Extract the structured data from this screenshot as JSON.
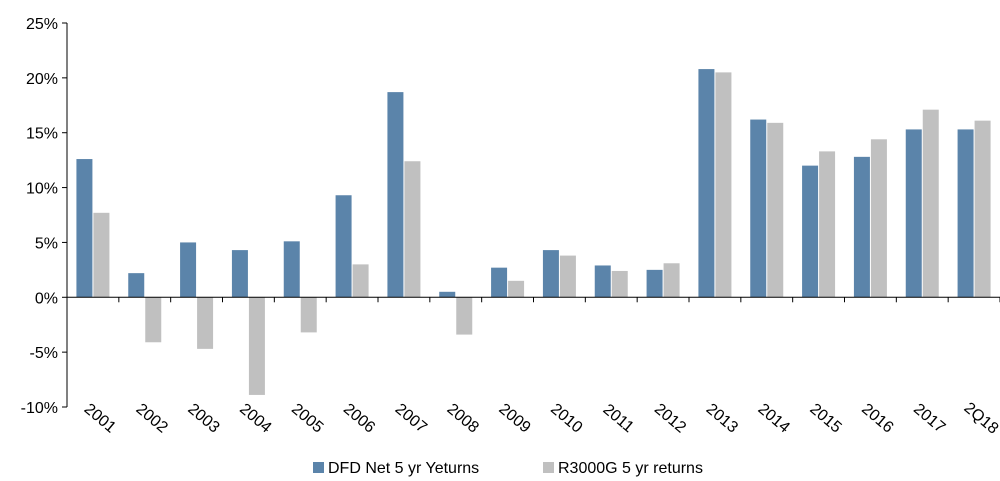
{
  "chart_data": {
    "type": "bar",
    "categories": [
      "2001",
      "2002",
      "2003",
      "2004",
      "2005",
      "2006",
      "2007",
      "2008",
      "2009",
      "2010",
      "2011",
      "2012",
      "2013",
      "2014",
      "2015",
      "2016",
      "2017",
      "2Q18"
    ],
    "series": [
      {
        "name": "DFD Net 5 yr Yeturns",
        "color": "#5b84aa",
        "values": [
          12.6,
          2.2,
          5.0,
          4.3,
          5.1,
          9.3,
          18.7,
          0.5,
          2.7,
          4.3,
          2.9,
          2.5,
          20.8,
          16.2,
          12.0,
          12.8,
          15.3,
          15.3
        ]
      },
      {
        "name": "R3000G 5 yr returns",
        "color": "#c0c0c0",
        "values": [
          7.7,
          -4.1,
          -4.7,
          -8.9,
          -3.2,
          3.0,
          12.4,
          -3.4,
          1.5,
          3.8,
          2.4,
          3.1,
          20.5,
          15.9,
          13.3,
          14.4,
          17.1,
          16.1
        ]
      }
    ],
    "y_ticks": [
      "25%",
      "20%",
      "15%",
      "10%",
      "5%",
      "0%",
      "-5%",
      "-10%"
    ],
    "y_tick_values": [
      25,
      20,
      15,
      10,
      5,
      0,
      -5,
      -10
    ],
    "ylim": [
      -10,
      25
    ],
    "grid": false,
    "legend_position": "bottom-center",
    "title": "",
    "xlabel": "",
    "ylabel": ""
  }
}
